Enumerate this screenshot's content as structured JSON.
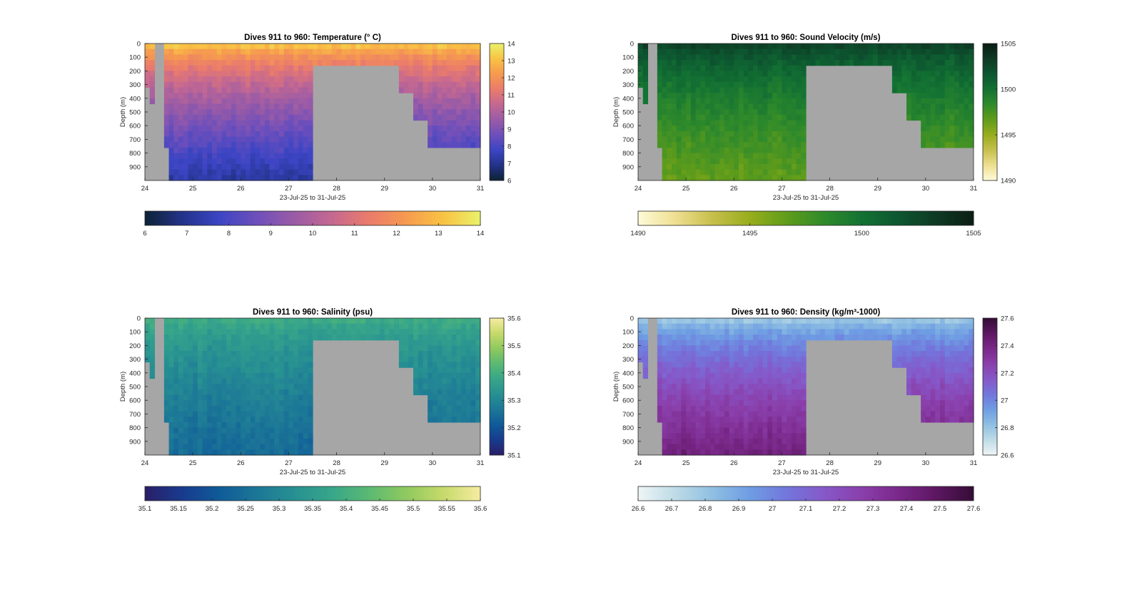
{
  "chart_data": [
    {
      "type": "heatmap",
      "title": "Dives 911 to 960: Temperature (° C)",
      "xlabel": "23-Jul-25 to 31-Jul-25",
      "ylabel": "Depth (m)",
      "xlim": [
        24,
        31
      ],
      "ylim": [
        0,
        1000
      ],
      "y_reversed": true,
      "x_ticks": [
        "24",
        "25",
        "26",
        "27",
        "28",
        "29",
        "30",
        "31"
      ],
      "y_ticks": [
        "0",
        "100",
        "200",
        "300",
        "400",
        "500",
        "600",
        "700",
        "800",
        "900"
      ],
      "colorbar_ticks": [
        "6",
        "7",
        "8",
        "9",
        "10",
        "11",
        "12",
        "13",
        "14"
      ],
      "hcolorbar_ticks": [
        "6",
        "7",
        "8",
        "9",
        "10",
        "11",
        "12",
        "13",
        "14"
      ],
      "clim": [
        6,
        14
      ],
      "surface_value": 13.8,
      "deep_value": 7.2,
      "colors": [
        "#0d2234",
        "#23338a",
        "#3c45c4",
        "#6e4fbb",
        "#9a5ba6",
        "#c46891",
        "#ea7b6c",
        "#f69a4f",
        "#f9c244",
        "#e9f26a"
      ]
    },
    {
      "type": "heatmap",
      "title": "Dives 911 to 960: Sound Velocity (m/s)",
      "xlabel": "23-Jul-25 to 31-Jul-25",
      "ylabel": "Depth (m)",
      "xlim": [
        24,
        31
      ],
      "ylim": [
        0,
        1000
      ],
      "y_reversed": true,
      "x_ticks": [
        "24",
        "25",
        "26",
        "27",
        "28",
        "29",
        "30",
        "31"
      ],
      "y_ticks": [
        "0",
        "100",
        "200",
        "300",
        "400",
        "500",
        "600",
        "700",
        "800",
        "900"
      ],
      "colorbar_ticks": [
        "1505",
        "1500",
        "1495",
        "1490"
      ],
      "hcolorbar_ticks": [
        "1490",
        "1495",
        "1500",
        "1505"
      ],
      "clim": [
        1490,
        1505
      ],
      "surface_value": 1503.5,
      "deep_value": 1496.5,
      "colors": [
        "#fefad8",
        "#eedf91",
        "#c6bf4c",
        "#97ad1c",
        "#5f9c1b",
        "#2f8a2b",
        "#137233",
        "#0d5630",
        "#0e3a24",
        "#0b1d14"
      ]
    },
    {
      "type": "heatmap",
      "title": "Dives 911 to 960: Salinity (psu)",
      "xlabel": "23-Jul-25 to 31-Jul-25",
      "ylabel": "Depth (m)",
      "xlim": [
        24,
        31
      ],
      "ylim": [
        0,
        1000
      ],
      "y_reversed": true,
      "x_ticks": [
        "24",
        "25",
        "26",
        "27",
        "28",
        "29",
        "30",
        "31"
      ],
      "y_ticks": [
        "0",
        "100",
        "200",
        "300",
        "400",
        "500",
        "600",
        "700",
        "800",
        "900"
      ],
      "colorbar_ticks": [
        "35.6",
        "35.5",
        "35.4",
        "35.3",
        "35.2",
        "35.1"
      ],
      "hcolorbar_ticks": [
        "35.1",
        "35.15",
        "35.2",
        "35.25",
        "35.3",
        "35.35",
        "35.4",
        "35.45",
        "35.5",
        "35.55",
        "35.6"
      ],
      "clim": [
        35.1,
        35.6
      ],
      "surface_value": 35.41,
      "deep_value": 35.24,
      "colors": [
        "#2a1e68",
        "#183b8e",
        "#0f5b98",
        "#1c7797",
        "#279092",
        "#37a68a",
        "#5ab972",
        "#8fc95f",
        "#c6da6a",
        "#f7eca2"
      ]
    },
    {
      "type": "heatmap",
      "title": "Dives 911 to 960: Density (kg/m³-1000)",
      "xlabel": "23-Jul-25 to 31-Jul-25",
      "ylabel": "Depth (m)",
      "xlim": [
        24,
        31
      ],
      "ylim": [
        0,
        1000
      ],
      "y_reversed": true,
      "x_ticks": [
        "24",
        "25",
        "26",
        "27",
        "28",
        "29",
        "30",
        "31"
      ],
      "y_ticks": [
        "0",
        "100",
        "200",
        "300",
        "400",
        "500",
        "600",
        "700",
        "800",
        "900"
      ],
      "colorbar_ticks": [
        "27.6",
        "27.4",
        "27.2",
        "27",
        "26.8",
        "26.6"
      ],
      "hcolorbar_ticks": [
        "26.6",
        "26.7",
        "26.8",
        "26.9",
        "27",
        "27.1",
        "27.2",
        "27.3",
        "27.4",
        "27.5",
        "27.6"
      ],
      "clim": [
        26.6,
        27.6
      ],
      "surface_value": 26.72,
      "deep_value": 27.42,
      "colors": [
        "#eef5f6",
        "#bedbe6",
        "#8fbfe2",
        "#6e9de3",
        "#7276dc",
        "#8658c8",
        "#8a3fab",
        "#7a2889",
        "#5d1762",
        "#340d35"
      ]
    }
  ]
}
